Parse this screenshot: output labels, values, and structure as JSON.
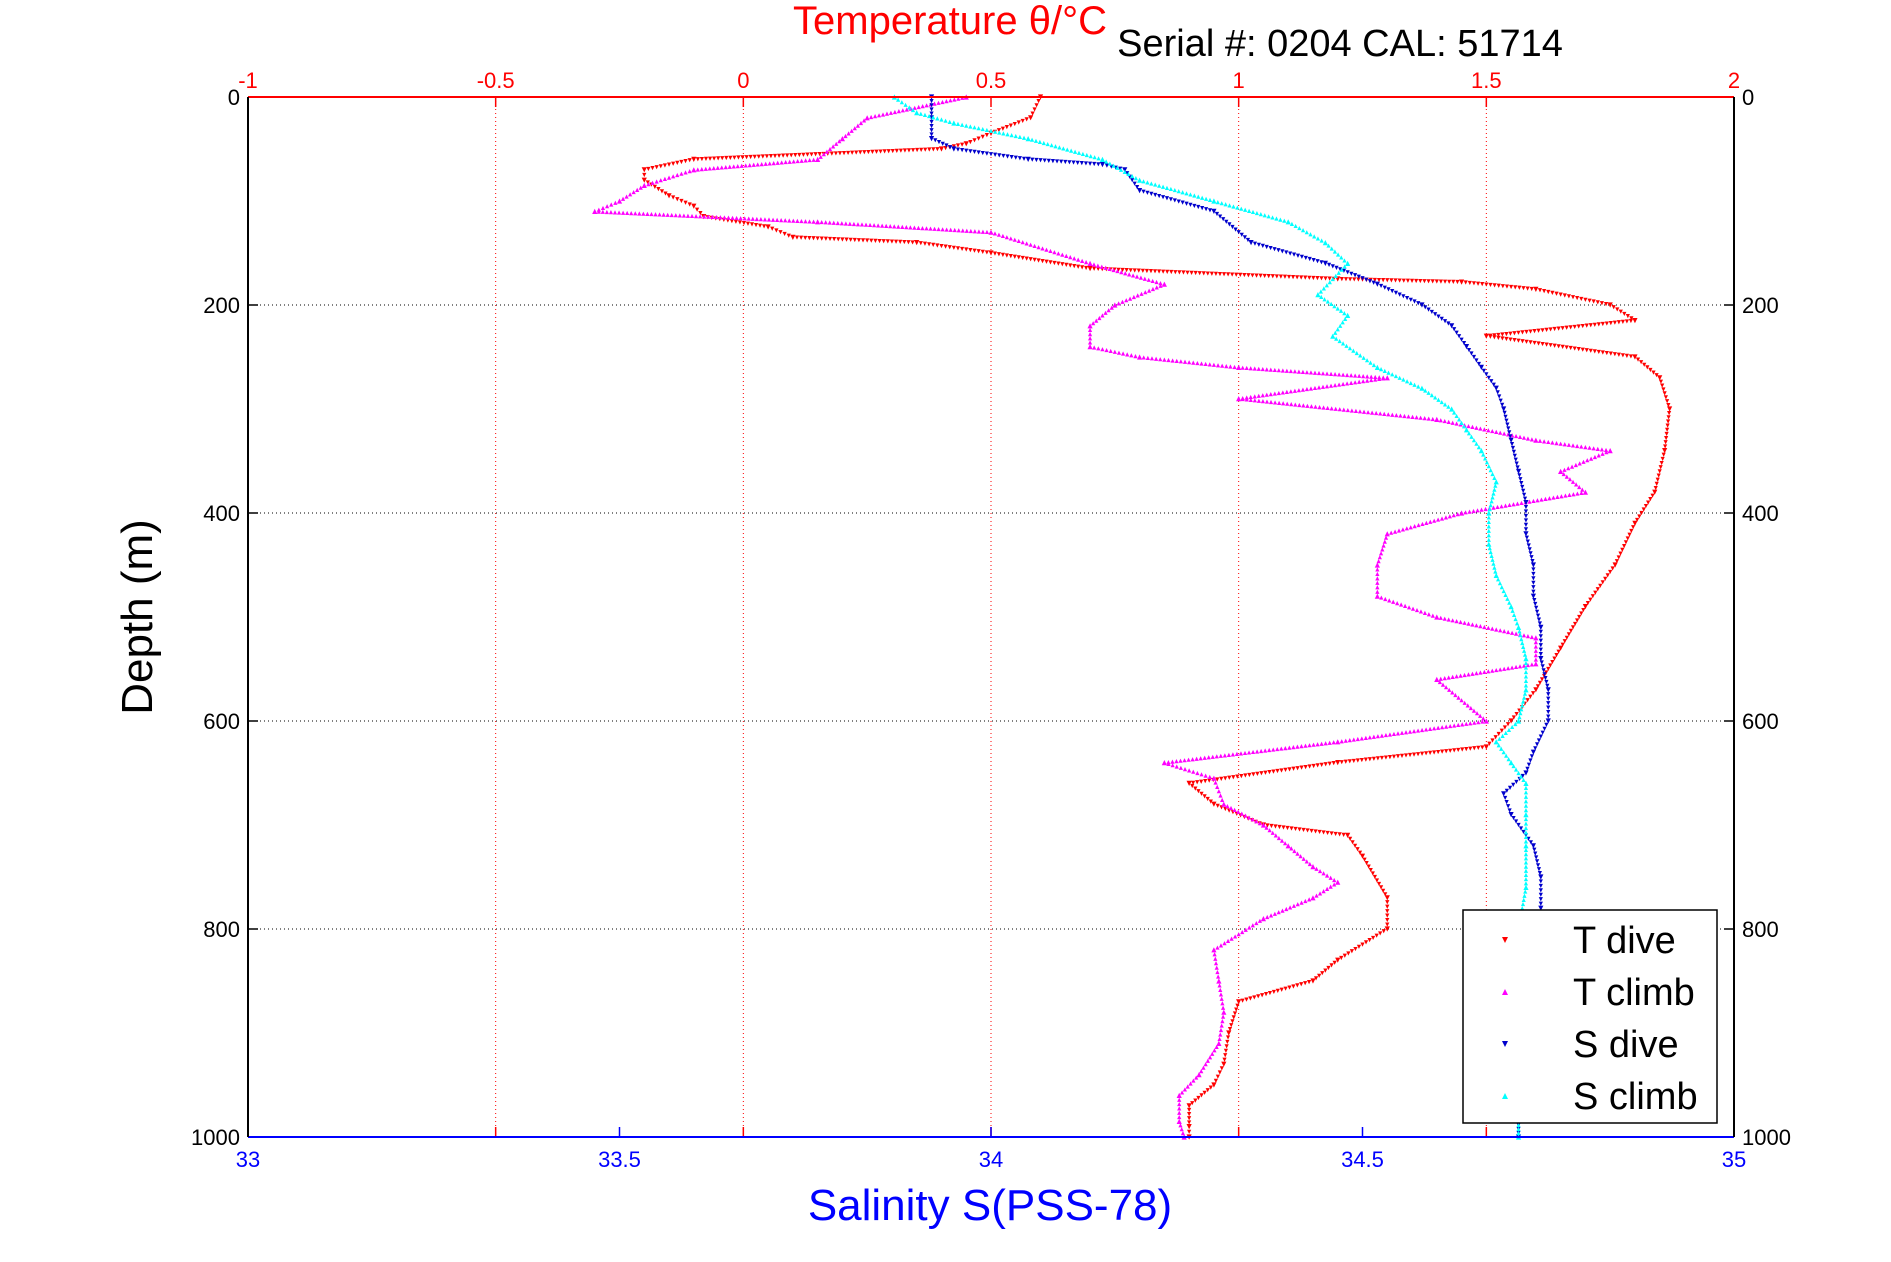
{
  "chart_data": {
    "type": "scatter",
    "header": "Serial #: 0204  CAL: 51714",
    "top_axis": {
      "label": "Temperature θ/°C",
      "range": [
        -1,
        2
      ],
      "ticks": [
        "-1",
        "-0.5",
        "0",
        "0.5",
        "1",
        "1.5",
        "2"
      ],
      "color": "#ff0000"
    },
    "bottom_axis": {
      "label": "Salinity S(PSS-78)",
      "range": [
        33,
        35
      ],
      "ticks": [
        "33",
        "33.5",
        "34",
        "34.5",
        "35"
      ],
      "color": "#0000ff"
    },
    "y_axis": {
      "label": "Depth (m)",
      "range": [
        0,
        1000
      ],
      "reversed": true,
      "ticks": [
        "0",
        "200",
        "400",
        "600",
        "800",
        "1000"
      ]
    },
    "grid": true,
    "legend_position": "bottom-right",
    "series": [
      {
        "name": "T dive",
        "axis": "top",
        "color": "#ff0000",
        "marker": "triangle-down",
        "points": [
          [
            0.6,
            0
          ],
          [
            0.58,
            20
          ],
          [
            0.5,
            35
          ],
          [
            0.45,
            45
          ],
          [
            0.4,
            50
          ],
          [
            -0.1,
            60
          ],
          [
            -0.2,
            70
          ],
          [
            -0.2,
            80
          ],
          [
            -0.15,
            95
          ],
          [
            -0.1,
            105
          ],
          [
            -0.08,
            115
          ],
          [
            0.05,
            125
          ],
          [
            0.1,
            135
          ],
          [
            0.35,
            140
          ],
          [
            0.5,
            150
          ],
          [
            0.7,
            165
          ],
          [
            1.2,
            175
          ],
          [
            1.45,
            178
          ],
          [
            1.6,
            185
          ],
          [
            1.75,
            200
          ],
          [
            1.8,
            215
          ],
          [
            1.5,
            230
          ],
          [
            1.8,
            250
          ],
          [
            1.85,
            270
          ],
          [
            1.87,
            300
          ],
          [
            1.86,
            340
          ],
          [
            1.84,
            380
          ],
          [
            1.8,
            410
          ],
          [
            1.76,
            450
          ],
          [
            1.7,
            490
          ],
          [
            1.65,
            530
          ],
          [
            1.6,
            570
          ],
          [
            1.55,
            600
          ],
          [
            1.5,
            625
          ],
          [
            1.2,
            640
          ],
          [
            0.9,
            660
          ],
          [
            0.95,
            680
          ],
          [
            1.05,
            700
          ],
          [
            1.22,
            710
          ],
          [
            1.25,
            730
          ],
          [
            1.3,
            770
          ],
          [
            1.3,
            800
          ],
          [
            1.2,
            830
          ],
          [
            1.15,
            850
          ],
          [
            1.0,
            870
          ],
          [
            0.98,
            900
          ],
          [
            0.97,
            930
          ],
          [
            0.95,
            950
          ],
          [
            0.9,
            970
          ],
          [
            0.9,
            990
          ],
          [
            0.9,
            1000
          ]
        ]
      },
      {
        "name": "T climb",
        "axis": "top",
        "color": "#ff00ff",
        "marker": "triangle-up",
        "points": [
          [
            0.45,
            0
          ],
          [
            0.25,
            20
          ],
          [
            0.2,
            40
          ],
          [
            0.15,
            60
          ],
          [
            -0.1,
            70
          ],
          [
            -0.2,
            85
          ],
          [
            -0.25,
            100
          ],
          [
            -0.3,
            110
          ],
          [
            0.15,
            120
          ],
          [
            0.5,
            130
          ],
          [
            0.7,
            160
          ],
          [
            0.85,
            180
          ],
          [
            0.75,
            200
          ],
          [
            0.7,
            220
          ],
          [
            0.7,
            240
          ],
          [
            0.8,
            250
          ],
          [
            1.0,
            260
          ],
          [
            1.3,
            270
          ],
          [
            1.0,
            290
          ],
          [
            1.4,
            310
          ],
          [
            1.6,
            330
          ],
          [
            1.75,
            340
          ],
          [
            1.65,
            360
          ],
          [
            1.7,
            380
          ],
          [
            1.45,
            400
          ],
          [
            1.3,
            420
          ],
          [
            1.28,
            450
          ],
          [
            1.28,
            480
          ],
          [
            1.4,
            500
          ],
          [
            1.6,
            520
          ],
          [
            1.6,
            545
          ],
          [
            1.4,
            560
          ],
          [
            1.5,
            600
          ],
          [
            1.2,
            620
          ],
          [
            0.85,
            640
          ],
          [
            0.95,
            655
          ],
          [
            0.97,
            680
          ],
          [
            1.05,
            700
          ],
          [
            1.1,
            720
          ],
          [
            1.15,
            740
          ],
          [
            1.2,
            755
          ],
          [
            1.15,
            770
          ],
          [
            1.05,
            790
          ],
          [
            0.95,
            820
          ],
          [
            0.96,
            850
          ],
          [
            0.97,
            880
          ],
          [
            0.96,
            910
          ],
          [
            0.92,
            940
          ],
          [
            0.88,
            960
          ],
          [
            0.88,
            985
          ],
          [
            0.89,
            1000
          ]
        ]
      },
      {
        "name": "S dive",
        "axis": "bottom",
        "color": "#0000cc",
        "marker": "triangle-down",
        "points": [
          [
            33.92,
            0
          ],
          [
            33.92,
            20
          ],
          [
            33.92,
            40
          ],
          [
            33.95,
            50
          ],
          [
            34.05,
            60
          ],
          [
            34.15,
            65
          ],
          [
            34.18,
            70
          ],
          [
            34.2,
            90
          ],
          [
            34.3,
            110
          ],
          [
            34.35,
            140
          ],
          [
            34.45,
            160
          ],
          [
            34.52,
            180
          ],
          [
            34.58,
            200
          ],
          [
            34.62,
            220
          ],
          [
            34.64,
            240
          ],
          [
            34.66,
            260
          ],
          [
            34.68,
            280
          ],
          [
            34.69,
            300
          ],
          [
            34.7,
            330
          ],
          [
            34.71,
            360
          ],
          [
            34.72,
            390
          ],
          [
            34.72,
            420
          ],
          [
            34.73,
            450
          ],
          [
            34.73,
            480
          ],
          [
            34.74,
            510
          ],
          [
            34.74,
            540
          ],
          [
            34.75,
            570
          ],
          [
            34.75,
            600
          ],
          [
            34.73,
            630
          ],
          [
            34.72,
            650
          ],
          [
            34.69,
            670
          ],
          [
            34.7,
            690
          ],
          [
            34.73,
            720
          ],
          [
            34.74,
            750
          ],
          [
            34.74,
            780
          ],
          [
            34.72,
            810
          ],
          [
            34.71,
            850
          ],
          [
            34.71,
            900
          ],
          [
            34.71,
            950
          ],
          [
            34.71,
            1000
          ]
        ]
      },
      {
        "name": "S climb",
        "axis": "bottom",
        "color": "#00ffff",
        "marker": "triangle-up",
        "points": [
          [
            33.87,
            0
          ],
          [
            33.9,
            15
          ],
          [
            33.95,
            25
          ],
          [
            34.05,
            40
          ],
          [
            34.15,
            60
          ],
          [
            34.2,
            80
          ],
          [
            34.3,
            100
          ],
          [
            34.4,
            120
          ],
          [
            34.45,
            140
          ],
          [
            34.48,
            160
          ],
          [
            34.44,
            190
          ],
          [
            34.48,
            210
          ],
          [
            34.46,
            230
          ],
          [
            34.52,
            260
          ],
          [
            34.58,
            280
          ],
          [
            34.62,
            300
          ],
          [
            34.64,
            320
          ],
          [
            34.66,
            340
          ],
          [
            34.68,
            370
          ],
          [
            34.67,
            400
          ],
          [
            34.67,
            430
          ],
          [
            34.68,
            460
          ],
          [
            34.7,
            490
          ],
          [
            34.71,
            510
          ],
          [
            34.72,
            540
          ],
          [
            34.72,
            570
          ],
          [
            34.71,
            600
          ],
          [
            34.68,
            620
          ],
          [
            34.7,
            640
          ],
          [
            34.72,
            660
          ],
          [
            34.72,
            690
          ],
          [
            34.72,
            720
          ],
          [
            34.72,
            760
          ],
          [
            34.71,
            800
          ],
          [
            34.71,
            850
          ],
          [
            34.71,
            900
          ],
          [
            34.71,
            950
          ],
          [
            34.71,
            1000
          ]
        ]
      }
    ]
  }
}
